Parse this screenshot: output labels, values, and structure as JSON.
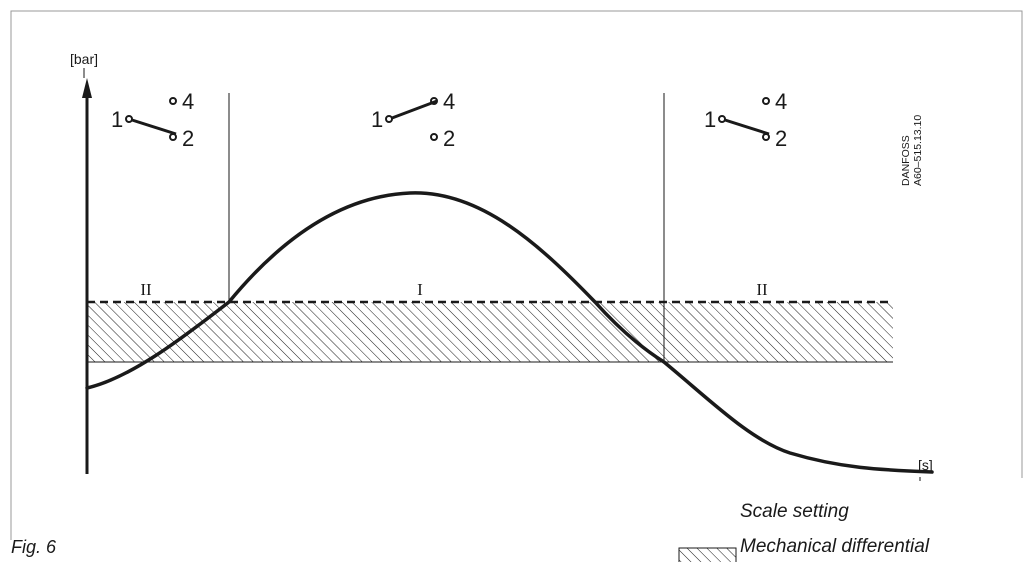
{
  "axes": {
    "y_unit": "[bar]",
    "x_unit": "[s]"
  },
  "zones": [
    {
      "label": "II"
    },
    {
      "label": "I"
    },
    {
      "label": "II"
    }
  ],
  "switch_contacts": {
    "left": {
      "c1": "1",
      "c2": "2",
      "c4": "4",
      "closed_to": "2"
    },
    "middle": {
      "c1": "1",
      "c2": "2",
      "c4": "4",
      "closed_to": "4"
    },
    "right": {
      "c1": "1",
      "c2": "2",
      "c4": "4",
      "closed_to": "2"
    }
  },
  "drawing_code": {
    "line1": "DANFOSS",
    "line2": "A60–515.13.10"
  },
  "legend": {
    "scale_setting": "Scale setting",
    "mechanical_differential": "Mechanical differential"
  },
  "figure_label": "Fig. 6",
  "colors": {
    "ink": "#1a1a1a",
    "frame": "#999999"
  }
}
